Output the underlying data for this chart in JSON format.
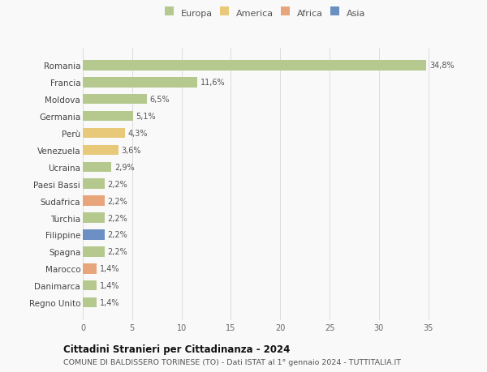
{
  "countries": [
    "Romania",
    "Francia",
    "Moldova",
    "Germania",
    "Perù",
    "Venezuela",
    "Ucraina",
    "Paesi Bassi",
    "Sudafrica",
    "Turchia",
    "Filippine",
    "Spagna",
    "Marocco",
    "Danimarca",
    "Regno Unito"
  ],
  "values": [
    34.8,
    11.6,
    6.5,
    5.1,
    4.3,
    3.6,
    2.9,
    2.2,
    2.2,
    2.2,
    2.2,
    2.2,
    1.4,
    1.4,
    1.4
  ],
  "labels": [
    "34,8%",
    "11,6%",
    "6,5%",
    "5,1%",
    "4,3%",
    "3,6%",
    "2,9%",
    "2,2%",
    "2,2%",
    "2,2%",
    "2,2%",
    "2,2%",
    "1,4%",
    "1,4%",
    "1,4%"
  ],
  "continents": [
    "Europa",
    "Europa",
    "Europa",
    "Europa",
    "America",
    "America",
    "Europa",
    "Europa",
    "Africa",
    "Europa",
    "Asia",
    "Europa",
    "Africa",
    "Europa",
    "Europa"
  ],
  "continent_colors": {
    "Europa": "#b5c98e",
    "America": "#e8c97a",
    "Africa": "#e8a47a",
    "Asia": "#6b8fc2"
  },
  "legend_order": [
    "Europa",
    "America",
    "Africa",
    "Asia"
  ],
  "legend_colors": [
    "#b5c98e",
    "#e8c97a",
    "#e8a47a",
    "#6b8fc2"
  ],
  "xlim": [
    0,
    37
  ],
  "xticks": [
    0,
    5,
    10,
    15,
    20,
    25,
    30,
    35
  ],
  "title": "Cittadini Stranieri per Cittadinanza - 2024",
  "subtitle": "COMUNE DI BALDISSERO TORINESE (TO) - Dati ISTAT al 1° gennaio 2024 - TUTTITALIA.IT",
  "background_color": "#f9f9f9",
  "grid_color": "#dddddd",
  "bar_height": 0.6
}
